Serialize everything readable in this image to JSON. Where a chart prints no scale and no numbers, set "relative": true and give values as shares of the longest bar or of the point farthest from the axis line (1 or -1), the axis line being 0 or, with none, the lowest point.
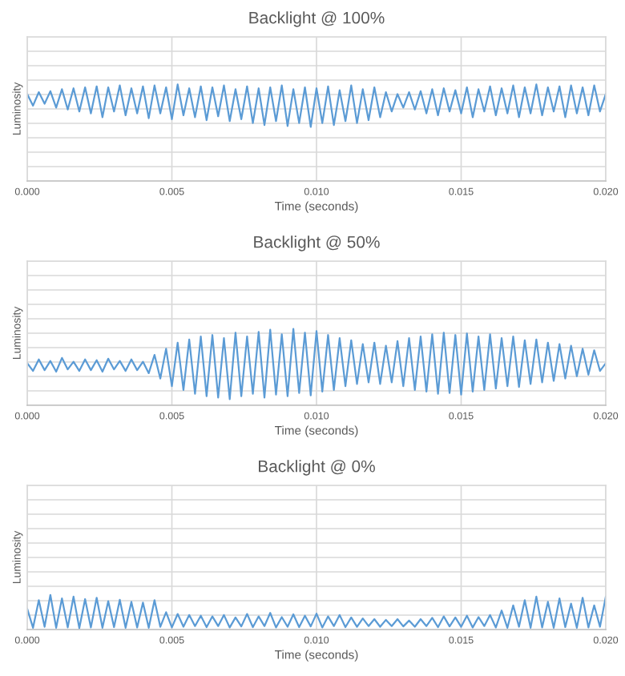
{
  "chart_data": [
    {
      "type": "line",
      "title": "Backlight @ 100%",
      "xlabel": "Time (seconds)",
      "ylabel": "Luminosity",
      "relative": true,
      "grid": true,
      "xlim": [
        0,
        0.02
      ],
      "xticks": [
        {
          "value": 0,
          "label": "0.000"
        },
        {
          "value": 0.005,
          "label": "0.005"
        },
        {
          "value": 0.01,
          "label": "0.010"
        },
        {
          "value": 0.015,
          "label": "0.015"
        },
        {
          "value": 0.02,
          "label": "0.020"
        }
      ],
      "tick_labels": "x",
      "x": [
        0.0,
        0.0002,
        0.0004,
        0.0006,
        0.0008,
        0.001,
        0.0012,
        0.0014,
        0.0016,
        0.0018,
        0.002,
        0.0022,
        0.0024,
        0.0026,
        0.0028,
        0.003,
        0.0032,
        0.0034,
        0.0036,
        0.0038,
        0.004,
        0.0042,
        0.0044,
        0.0046,
        0.0048,
        0.005,
        0.0052,
        0.0054,
        0.0056,
        0.0058,
        0.006,
        0.0062,
        0.0064,
        0.0066,
        0.0068,
        0.007,
        0.0072,
        0.0074,
        0.0076,
        0.0078,
        0.008,
        0.0082,
        0.0084,
        0.0086,
        0.0088,
        0.009,
        0.0092,
        0.0094,
        0.0096,
        0.0098,
        0.01,
        0.0102,
        0.0104,
        0.0106,
        0.0108,
        0.011,
        0.0112,
        0.0114,
        0.0116,
        0.0118,
        0.012,
        0.0122,
        0.0124,
        0.0126,
        0.0128,
        0.013,
        0.0132,
        0.0134,
        0.0136,
        0.0138,
        0.014,
        0.0142,
        0.0144,
        0.0146,
        0.0148,
        0.015,
        0.0152,
        0.0154,
        0.0156,
        0.0158,
        0.016,
        0.0162,
        0.0164,
        0.0166,
        0.0168,
        0.017,
        0.0172,
        0.0174,
        0.0176,
        0.0178,
        0.018,
        0.0182,
        0.0184,
        0.0186,
        0.0188,
        0.019,
        0.0192,
        0.0194,
        0.0196,
        0.0198,
        0.02
      ],
      "series": [
        {
          "color": "#5b9bd5",
          "values": [
            0.9,
            0.78,
            0.92,
            0.8,
            0.93,
            0.76,
            0.95,
            0.74,
            0.96,
            0.72,
            0.97,
            0.7,
            0.98,
            0.66,
            0.97,
            0.72,
            0.99,
            0.68,
            0.96,
            0.7,
            0.98,
            0.65,
            0.99,
            0.7,
            0.97,
            0.64,
            1.0,
            0.68,
            0.96,
            0.66,
            0.98,
            0.63,
            0.97,
            0.67,
            0.99,
            0.62,
            0.95,
            0.64,
            0.98,
            0.6,
            0.96,
            0.58,
            0.97,
            0.62,
            0.99,
            0.57,
            0.95,
            0.6,
            0.97,
            0.56,
            0.96,
            0.6,
            0.98,
            0.58,
            0.94,
            0.62,
            0.99,
            0.6,
            0.95,
            0.63,
            0.97,
            0.66,
            0.92,
            0.72,
            0.9,
            0.76,
            0.92,
            0.74,
            0.93,
            0.7,
            0.95,
            0.68,
            0.96,
            0.72,
            0.94,
            0.7,
            0.97,
            0.66,
            0.95,
            0.72,
            0.98,
            0.68,
            0.96,
            0.7,
            0.99,
            0.66,
            0.97,
            0.7,
            1.0,
            0.68,
            0.97,
            0.72,
            0.98,
            0.66,
            0.99,
            0.7,
            0.97,
            0.68,
            0.99,
            0.72,
            0.9
          ]
        }
      ]
    },
    {
      "type": "line",
      "title": "Backlight @ 50%",
      "xlabel": "Time (seconds)",
      "ylabel": "Luminosity",
      "relative": true,
      "grid": true,
      "xlim": [
        0,
        0.02
      ],
      "xticks": [
        {
          "value": 0,
          "label": "0.000"
        },
        {
          "value": 0.005,
          "label": "0.005"
        },
        {
          "value": 0.01,
          "label": "0.010"
        },
        {
          "value": 0.015,
          "label": "0.015"
        },
        {
          "value": 0.02,
          "label": "0.020"
        }
      ],
      "tick_labels": "x",
      "x": [
        0.0,
        0.0002,
        0.0004,
        0.0006,
        0.0008,
        0.001,
        0.0012,
        0.0014,
        0.0016,
        0.0018,
        0.002,
        0.0022,
        0.0024,
        0.0026,
        0.0028,
        0.003,
        0.0032,
        0.0034,
        0.0036,
        0.0038,
        0.004,
        0.0042,
        0.0044,
        0.0046,
        0.0048,
        0.005,
        0.0052,
        0.0054,
        0.0056,
        0.0058,
        0.006,
        0.0062,
        0.0064,
        0.0066,
        0.0068,
        0.007,
        0.0072,
        0.0074,
        0.0076,
        0.0078,
        0.008,
        0.0082,
        0.0084,
        0.0086,
        0.0088,
        0.009,
        0.0092,
        0.0094,
        0.0096,
        0.0098,
        0.01,
        0.0102,
        0.0104,
        0.0106,
        0.0108,
        0.011,
        0.0112,
        0.0114,
        0.0116,
        0.0118,
        0.012,
        0.0122,
        0.0124,
        0.0126,
        0.0128,
        0.013,
        0.0132,
        0.0134,
        0.0136,
        0.0138,
        0.014,
        0.0142,
        0.0144,
        0.0146,
        0.0148,
        0.015,
        0.0152,
        0.0154,
        0.0156,
        0.0158,
        0.016,
        0.0162,
        0.0164,
        0.0166,
        0.0168,
        0.017,
        0.0172,
        0.0174,
        0.0176,
        0.0178,
        0.018,
        0.0182,
        0.0184,
        0.0186,
        0.0188,
        0.019,
        0.0192,
        0.0194,
        0.0196,
        0.0198,
        0.02
      ],
      "series": [
        {
          "color": "#5b9bd5",
          "values": [
            0.55,
            0.45,
            0.6,
            0.46,
            0.58,
            0.44,
            0.62,
            0.47,
            0.57,
            0.45,
            0.6,
            0.46,
            0.59,
            0.44,
            0.61,
            0.47,
            0.58,
            0.45,
            0.6,
            0.46,
            0.57,
            0.42,
            0.66,
            0.35,
            0.74,
            0.25,
            0.82,
            0.2,
            0.86,
            0.15,
            0.9,
            0.12,
            0.92,
            0.1,
            0.88,
            0.08,
            0.95,
            0.12,
            0.9,
            0.15,
            0.96,
            0.1,
            0.99,
            0.14,
            0.93,
            0.12,
            1.0,
            0.16,
            0.95,
            0.13,
            0.97,
            0.18,
            0.92,
            0.2,
            0.88,
            0.25,
            0.85,
            0.28,
            0.8,
            0.3,
            0.82,
            0.28,
            0.78,
            0.3,
            0.84,
            0.25,
            0.88,
            0.2,
            0.9,
            0.18,
            0.93,
            0.15,
            0.95,
            0.16,
            0.92,
            0.14,
            0.94,
            0.18,
            0.9,
            0.2,
            0.93,
            0.22,
            0.88,
            0.25,
            0.9,
            0.24,
            0.85,
            0.28,
            0.86,
            0.3,
            0.82,
            0.32,
            0.8,
            0.35,
            0.78,
            0.38,
            0.74,
            0.4,
            0.72,
            0.45,
            0.55
          ]
        }
      ]
    },
    {
      "type": "line",
      "title": "Backlight @ 0%",
      "xlabel": "Time (seconds)",
      "ylabel": "Luminosity",
      "relative": true,
      "grid": true,
      "xlim": [
        0,
        0.02
      ],
      "xticks": [
        {
          "value": 0,
          "label": "0.000"
        },
        {
          "value": 0.005,
          "label": "0.005"
        },
        {
          "value": 0.01,
          "label": "0.010"
        },
        {
          "value": 0.015,
          "label": "0.015"
        },
        {
          "value": 0.02,
          "label": "0.020"
        }
      ],
      "tick_labels": "x",
      "x": [
        0.0,
        0.0002,
        0.0004,
        0.0006,
        0.0008,
        0.001,
        0.0012,
        0.0014,
        0.0016,
        0.0018,
        0.002,
        0.0022,
        0.0024,
        0.0026,
        0.0028,
        0.003,
        0.0032,
        0.0034,
        0.0036,
        0.0038,
        0.004,
        0.0042,
        0.0044,
        0.0046,
        0.0048,
        0.005,
        0.0052,
        0.0054,
        0.0056,
        0.0058,
        0.006,
        0.0062,
        0.0064,
        0.0066,
        0.0068,
        0.007,
        0.0072,
        0.0074,
        0.0076,
        0.0078,
        0.008,
        0.0082,
        0.0084,
        0.0086,
        0.0088,
        0.009,
        0.0092,
        0.0094,
        0.0096,
        0.0098,
        0.01,
        0.0102,
        0.0104,
        0.0106,
        0.0108,
        0.011,
        0.0112,
        0.0114,
        0.0116,
        0.0118,
        0.012,
        0.0122,
        0.0124,
        0.0126,
        0.0128,
        0.013,
        0.0132,
        0.0134,
        0.0136,
        0.0138,
        0.014,
        0.0142,
        0.0144,
        0.0146,
        0.0148,
        0.015,
        0.0152,
        0.0154,
        0.0156,
        0.0158,
        0.016,
        0.0162,
        0.0164,
        0.0166,
        0.0168,
        0.017,
        0.0172,
        0.0174,
        0.0176,
        0.0178,
        0.018,
        0.0182,
        0.0184,
        0.0186,
        0.0188,
        0.019,
        0.0192,
        0.0194,
        0.0196,
        0.0198,
        0.02
      ],
      "series": [
        {
          "color": "#5b9bd5",
          "values": [
            0.6,
            0.05,
            0.85,
            0.08,
            1.0,
            0.05,
            0.9,
            0.06,
            0.95,
            0.04,
            0.88,
            0.06,
            0.92,
            0.05,
            0.82,
            0.07,
            0.86,
            0.05,
            0.8,
            0.06,
            0.78,
            0.05,
            0.85,
            0.08,
            0.5,
            0.06,
            0.45,
            0.08,
            0.42,
            0.1,
            0.4,
            0.07,
            0.38,
            0.1,
            0.42,
            0.06,
            0.35,
            0.09,
            0.45,
            0.07,
            0.38,
            0.1,
            0.48,
            0.06,
            0.36,
            0.08,
            0.44,
            0.07,
            0.4,
            0.09,
            0.46,
            0.06,
            0.38,
            0.1,
            0.42,
            0.07,
            0.35,
            0.08,
            0.32,
            0.1,
            0.3,
            0.08,
            0.28,
            0.1,
            0.3,
            0.09,
            0.26,
            0.08,
            0.3,
            0.1,
            0.34,
            0.07,
            0.38,
            0.09,
            0.35,
            0.08,
            0.4,
            0.06,
            0.36,
            0.1,
            0.42,
            0.06,
            0.55,
            0.05,
            0.7,
            0.08,
            0.85,
            0.05,
            0.95,
            0.06,
            0.8,
            0.05,
            0.9,
            0.07,
            0.75,
            0.05,
            0.92,
            0.06,
            0.7,
            0.08,
            0.95
          ]
        }
      ]
    }
  ]
}
